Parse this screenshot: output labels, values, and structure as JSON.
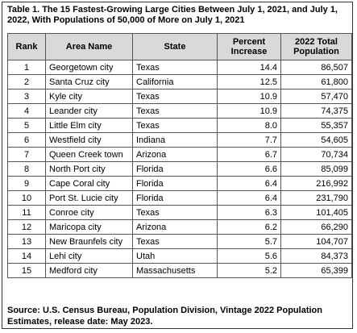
{
  "title": "Table 1. The 15 Fastest-Growing Large Cities Between July 1, 2021, and July 1,\n2022, With Populations of 50,000 of More on July 1, 2021",
  "headers": {
    "rank": "Rank",
    "area_name": "Area Name",
    "state": "State",
    "percent_increase": "Percent Increase",
    "population": "2022 Total Population"
  },
  "rows": [
    {
      "rank": "1",
      "area": "Georgetown city",
      "state": "Texas",
      "pct": "14.4",
      "pop": "86,507"
    },
    {
      "rank": "2",
      "area": "Santa Cruz city",
      "state": "California",
      "pct": "12.5",
      "pop": "61,800"
    },
    {
      "rank": "3",
      "area": "Kyle city",
      "state": "Texas",
      "pct": "10.9",
      "pop": "57,470"
    },
    {
      "rank": "4",
      "area": "Leander city",
      "state": "Texas",
      "pct": "10.9",
      "pop": "74,375"
    },
    {
      "rank": "5",
      "area": "Little Elm city",
      "state": "Texas",
      "pct": "8.0",
      "pop": "55,357"
    },
    {
      "rank": "6",
      "area": "Westfield city",
      "state": "Indiana",
      "pct": "7.7",
      "pop": "54,605"
    },
    {
      "rank": "7",
      "area": "Queen Creek town",
      "state": "Arizona",
      "pct": "6.7",
      "pop": "70,734"
    },
    {
      "rank": "8",
      "area": "North Port city",
      "state": "Florida",
      "pct": "6.6",
      "pop": "85,099"
    },
    {
      "rank": "9",
      "area": "Cape Coral city",
      "state": "Florida",
      "pct": "6.4",
      "pop": "216,992"
    },
    {
      "rank": "10",
      "area": "Port St. Lucie city",
      "state": "Florida",
      "pct": "6.4",
      "pop": "231,790"
    },
    {
      "rank": "11",
      "area": "Conroe city",
      "state": "Texas",
      "pct": "6.3",
      "pop": "101,405"
    },
    {
      "rank": "12",
      "area": "Maricopa city",
      "state": "Arizona",
      "pct": "6.2",
      "pop": "66,290"
    },
    {
      "rank": "13",
      "area": "New Braunfels city",
      "state": "Texas",
      "pct": "5.7",
      "pop": "104,707"
    },
    {
      "rank": "14",
      "area": "Lehi city",
      "state": "Utah",
      "pct": "5.6",
      "pop": "84,373"
    },
    {
      "rank": "15",
      "area": "Medford city",
      "state": "Massachusetts",
      "pct": "5.2",
      "pop": "65,399"
    }
  ],
  "source": "Source: U.S. Census Bureau, Population Division, Vintage 2022 Population Estimates, release date: May 2023.",
  "colors": {
    "header_bg": "#d9d9d9",
    "border": "#555555"
  }
}
